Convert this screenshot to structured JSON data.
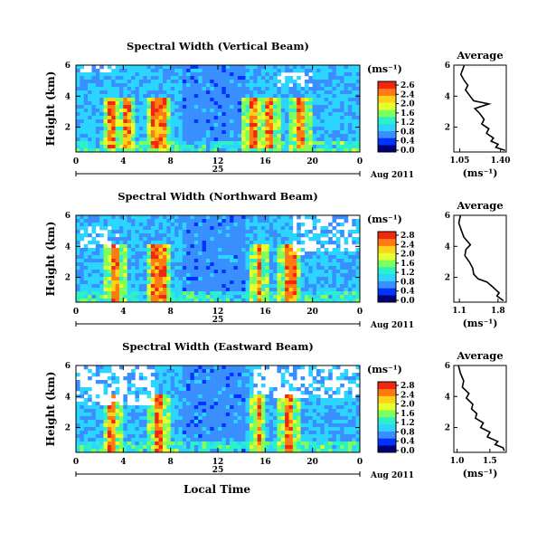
{
  "figure": {
    "time_axis_label": "Local Time",
    "day_label": "25",
    "month_label": "Aug 2011",
    "height_label": "Height (km)",
    "unit_label": "(ms⁻¹)",
    "average_title": "Average",
    "average_unit": "(ms⁻¹)"
  },
  "chart_data": [
    {
      "type": "heatmap",
      "title": "Spectral Width (Vertical Beam)",
      "ylabel": "Height (km)",
      "xlabel": "Local Time",
      "x_ticks": [
        "0",
        "4",
        "8",
        "12",
        "16",
        "20",
        "0"
      ],
      "xlim": [
        0,
        24
      ],
      "y_ticks": [
        "6",
        "4",
        "2"
      ],
      "ylim": [
        0.4,
        6.0
      ],
      "colorbar": {
        "label": "(ms⁻¹)",
        "ticks": [
          "2.6",
          "2.4",
          "2.0",
          "1.6",
          "1.2",
          "0.8",
          "0.4",
          "0.0"
        ],
        "range": [
          0.0,
          2.8
        ]
      },
      "colormap": [
        "#00007a",
        "#0033ff",
        "#3a8fff",
        "#2bd5ff",
        "#2cf0c8",
        "#7eff5c",
        "#e6ff2e",
        "#ffd21a",
        "#ff7a10",
        "#f02810"
      ],
      "features": {
        "high_width_events_hours": [
          [
            2.8,
            3.2
          ],
          [
            4.0,
            4.6
          ],
          [
            6.5,
            7.6
          ],
          [
            14.6,
            15.2
          ],
          [
            16.0,
            16.8
          ],
          [
            18.6,
            19.4
          ]
        ],
        "event_height_range_km": [
          0.6,
          4.0
        ],
        "missing_data": [
          [
            0.5,
            4.0,
            5.6,
            6.0
          ],
          [
            17.0,
            20.0,
            4.5,
            5.5
          ]
        ]
      }
    },
    {
      "type": "heatmap",
      "title": "Spectral Width (Northward Beam)",
      "ylabel": "Height (km)",
      "xlabel": "Local Time",
      "x_ticks": [
        "0",
        "4",
        "8",
        "12",
        "16",
        "20",
        "0"
      ],
      "xlim": [
        0,
        24
      ],
      "y_ticks": [
        "6",
        "4",
        "2"
      ],
      "ylim": [
        0.4,
        6.0
      ],
      "colorbar": {
        "label": "(ms⁻¹)",
        "ticks": [
          "2.8",
          "2.4",
          "2.0",
          "1.6",
          "1.2",
          "0.8",
          "0.4",
          "0.0"
        ],
        "range": [
          0.0,
          2.8
        ]
      },
      "colormap": [
        "#00007a",
        "#0033ff",
        "#3a8fff",
        "#2bd5ff",
        "#2cf0c8",
        "#7eff5c",
        "#e6ff2e",
        "#ffd21a",
        "#ff7a10",
        "#f02810"
      ],
      "features": {
        "high_width_events_hours": [
          [
            3.0,
            3.8
          ],
          [
            6.5,
            7.6
          ],
          [
            15.2,
            15.8
          ],
          [
            17.6,
            18.6
          ]
        ],
        "event_height_range_km": [
          0.5,
          4.2
        ],
        "missing_data": [
          [
            0.5,
            3.5,
            3.8,
            5.2
          ],
          [
            18.5,
            24.0,
            3.5,
            6.0
          ]
        ]
      }
    },
    {
      "type": "heatmap",
      "title": "Spectral Width (Eastward Beam)",
      "ylabel": "Height (km)",
      "xlabel": "Local Time",
      "x_ticks": [
        "0",
        "4",
        "8",
        "12",
        "16",
        "20",
        "0"
      ],
      "xlim": [
        0,
        24
      ],
      "y_ticks": [
        "6",
        "4",
        "2"
      ],
      "ylim": [
        0.4,
        6.0
      ],
      "colorbar": {
        "label": "(ms⁻¹)",
        "ticks": [
          "2.8",
          "2.4",
          "2.0",
          "1.6",
          "1.2",
          "0.8",
          "0.4",
          "0.0"
        ],
        "range": [
          0.0,
          2.8
        ]
      },
      "colormap": [
        "#00007a",
        "#0033ff",
        "#3a8fff",
        "#2bd5ff",
        "#2cf0c8",
        "#7eff5c",
        "#e6ff2e",
        "#ffd21a",
        "#ff7a10",
        "#f02810"
      ],
      "features": {
        "high_width_events_hours": [
          [
            2.8,
            3.4
          ],
          [
            6.6,
            7.4
          ],
          [
            15.2,
            15.6
          ],
          [
            17.6,
            18.4
          ]
        ],
        "event_height_range_km": [
          0.5,
          4.2
        ],
        "missing_data": [
          [
            0.0,
            6.5,
            3.5,
            6.0
          ],
          [
            15.0,
            24.0,
            3.8,
            6.0
          ]
        ]
      }
    },
    {
      "type": "line",
      "title": "Average",
      "xlabel": "(ms⁻¹)",
      "x_ticks": [
        "1.05",
        "1.40"
      ],
      "xlim": [
        1.0,
        1.45
      ],
      "y_ticks": [
        "6",
        "4",
        "2"
      ],
      "ylim": [
        0.4,
        6.0
      ],
      "x": [
        1.09,
        1.06,
        1.09,
        1.12,
        1.1,
        1.14,
        1.17,
        1.3,
        1.18,
        1.22,
        1.26,
        1.24,
        1.3,
        1.28,
        1.34,
        1.32,
        1.38,
        1.36,
        1.44
      ],
      "y": [
        6.0,
        5.4,
        5.0,
        4.7,
        4.4,
        4.0,
        3.7,
        3.5,
        3.2,
        2.9,
        2.5,
        2.2,
        1.9,
        1.6,
        1.3,
        1.1,
        0.9,
        0.7,
        0.5
      ]
    },
    {
      "type": "line",
      "title": "Average",
      "xlabel": "(ms⁻¹)",
      "x_ticks": [
        "1.1",
        "1.8"
      ],
      "xlim": [
        1.0,
        1.95
      ],
      "y_ticks": [
        "6",
        "4",
        "2"
      ],
      "ylim": [
        0.4,
        6.0
      ],
      "x": [
        1.12,
        1.09,
        1.14,
        1.18,
        1.3,
        1.22,
        1.2,
        1.28,
        1.34,
        1.36,
        1.44,
        1.6,
        1.7,
        1.76,
        1.82,
        1.78,
        1.86,
        1.9
      ],
      "y": [
        6.0,
        5.5,
        5.0,
        4.6,
        4.1,
        3.8,
        3.4,
        3.0,
        2.6,
        2.2,
        1.9,
        1.7,
        1.4,
        1.2,
        1.0,
        0.8,
        0.6,
        0.5
      ]
    },
    {
      "type": "line",
      "title": "Average",
      "xlabel": "(ms⁻¹)",
      "x_ticks": [
        "1.0",
        "1.5"
      ],
      "xlim": [
        0.95,
        1.75
      ],
      "y_ticks": [
        "6",
        "4",
        "2"
      ],
      "ylim": [
        0.4,
        6.0
      ],
      "x": [
        1.02,
        1.05,
        1.1,
        1.08,
        1.18,
        1.14,
        1.24,
        1.22,
        1.3,
        1.28,
        1.4,
        1.36,
        1.5,
        1.46,
        1.62,
        1.58,
        1.7,
        1.72
      ],
      "y": [
        6.0,
        5.5,
        5.0,
        4.6,
        4.2,
        3.9,
        3.5,
        3.2,
        2.9,
        2.6,
        2.3,
        2.0,
        1.7,
        1.4,
        1.1,
        0.9,
        0.7,
        0.5
      ]
    }
  ]
}
